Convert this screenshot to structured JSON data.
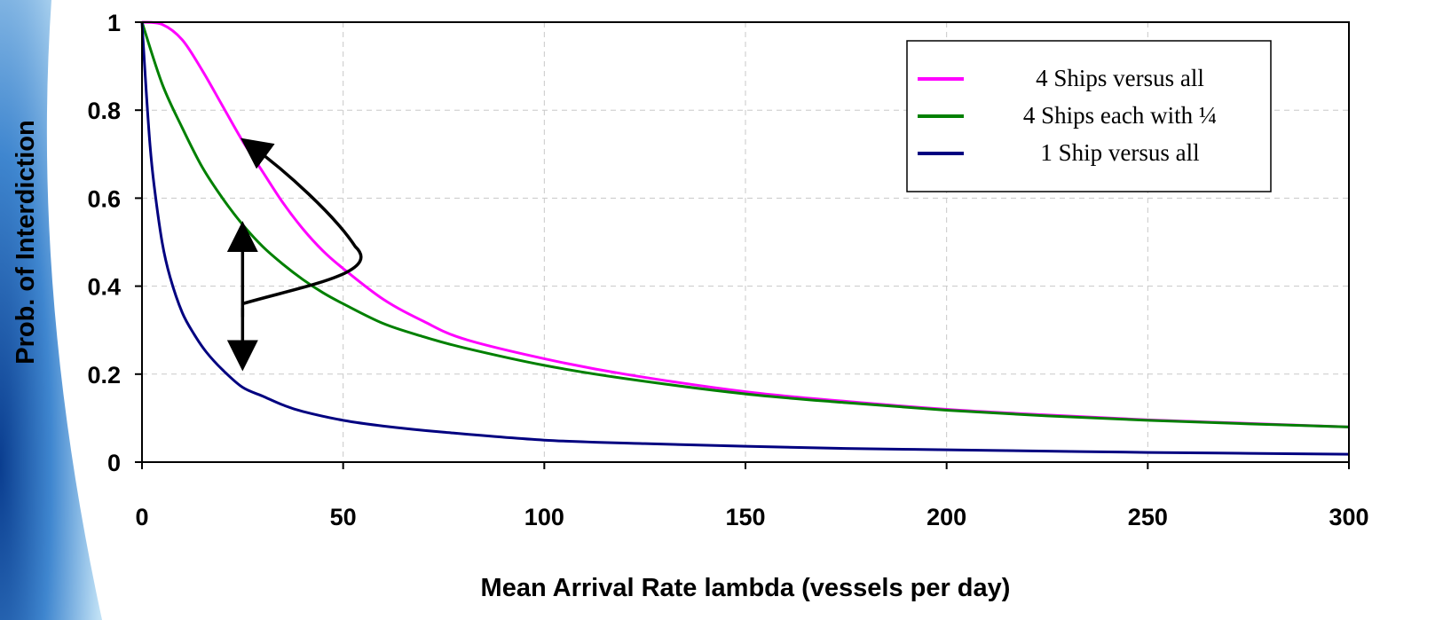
{
  "chart_data": {
    "type": "line",
    "title": "",
    "xlabel": "Mean Arrival Rate lambda (vessels per day)",
    "ylabel": "Prob. of Interdiction",
    "xlim": [
      0,
      300
    ],
    "ylim": [
      0,
      1
    ],
    "x_ticks": [
      0,
      50,
      100,
      150,
      200,
      250,
      300
    ],
    "y_ticks": [
      0,
      0.2,
      0.4,
      0.6,
      0.8,
      1
    ],
    "x_tick_labels": [
      "0",
      "50",
      "100",
      "150",
      "200",
      "250",
      "300"
    ],
    "y_tick_labels": [
      "0",
      "0.2",
      "0.4",
      "0.6",
      "0.8",
      "1"
    ],
    "grid": true,
    "legend_position": "top-right",
    "series": [
      {
        "name": "4 Ships versus all",
        "color": "#ff00ff",
        "x": [
          0,
          5,
          10,
          15,
          20,
          25,
          30,
          35,
          40,
          45,
          50,
          60,
          70,
          80,
          100,
          120,
          150,
          175,
          200,
          225,
          250,
          275,
          300
        ],
        "y": [
          1.0,
          0.995,
          0.96,
          0.89,
          0.81,
          0.73,
          0.66,
          0.59,
          0.53,
          0.48,
          0.44,
          0.37,
          0.32,
          0.28,
          0.235,
          0.2,
          0.16,
          0.138,
          0.12,
          0.107,
          0.096,
          0.088,
          0.08
        ]
      },
      {
        "name": "4 Ships each with ¼",
        "color": "#008000",
        "x": [
          0,
          5,
          10,
          15,
          20,
          25,
          30,
          35,
          40,
          45,
          50,
          60,
          70,
          80,
          100,
          120,
          150,
          175,
          200,
          225,
          250,
          275,
          300
        ],
        "y": [
          1.0,
          0.86,
          0.76,
          0.67,
          0.6,
          0.54,
          0.49,
          0.45,
          0.415,
          0.385,
          0.36,
          0.315,
          0.285,
          0.26,
          0.22,
          0.19,
          0.155,
          0.135,
          0.118,
          0.105,
          0.095,
          0.087,
          0.08
        ]
      },
      {
        "name": "1 Ship versus all",
        "color": "#000080",
        "x": [
          0,
          1,
          2,
          3,
          5,
          7,
          10,
          13,
          16,
          20,
          25,
          30,
          35,
          40,
          50,
          60,
          75,
          100,
          125,
          150,
          175,
          200,
          225,
          250,
          275,
          300
        ],
        "y": [
          1.0,
          0.85,
          0.72,
          0.63,
          0.5,
          0.42,
          0.34,
          0.29,
          0.25,
          0.21,
          0.17,
          0.15,
          0.13,
          0.115,
          0.095,
          0.082,
          0.068,
          0.05,
          0.042,
          0.036,
          0.031,
          0.028,
          0.025,
          0.022,
          0.02,
          0.018
        ]
      }
    ]
  }
}
